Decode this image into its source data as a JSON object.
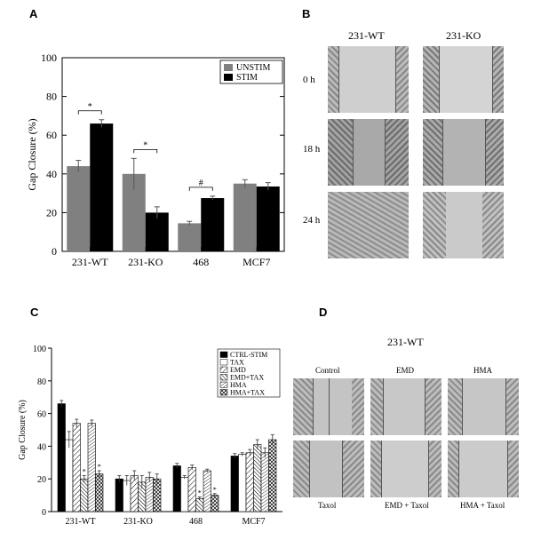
{
  "panels": {
    "A": "A",
    "B": "B",
    "C": "C",
    "D": "D"
  },
  "chart_data": [
    {
      "type": "bar",
      "panel": "A",
      "ylabel": "Gap Closure (%)",
      "xlabel": "",
      "ylim": [
        0,
        100
      ],
      "yticks": [
        "0",
        "20",
        "40",
        "60",
        "80",
        "100"
      ],
      "categories": [
        "231-WT",
        "231-KO",
        "468",
        "MCF7"
      ],
      "series": [
        {
          "name": "UNSTIM",
          "color": "#808080",
          "values": [
            44,
            40,
            14.5,
            35
          ],
          "errors": [
            3,
            8,
            1,
            2
          ]
        },
        {
          "name": "STIM",
          "color": "#000000",
          "values": [
            66,
            20,
            27.5,
            33.5
          ],
          "errors": [
            2,
            3,
            1,
            2
          ]
        }
      ],
      "annotations": [
        "*",
        "*",
        "#"
      ],
      "legend_position": "top-right"
    },
    {
      "type": "bar",
      "panel": "C",
      "ylabel": "Gap Closure (%)",
      "xlabel": "",
      "ylim": [
        0,
        100
      ],
      "yticks": [
        "0",
        "20",
        "40",
        "60",
        "80",
        "100"
      ],
      "categories": [
        "231-WT",
        "231-KO",
        "468",
        "MCF7"
      ],
      "series": [
        {
          "name": "CTRL-STIM",
          "fill": "solid",
          "values": [
            66,
            20,
            28,
            34
          ],
          "errors": [
            2,
            2,
            1.5,
            1.5
          ]
        },
        {
          "name": "TAX",
          "fill": "white",
          "values": [
            44,
            19,
            21,
            35
          ],
          "errors": [
            5,
            3,
            1,
            1
          ]
        },
        {
          "name": "EMD",
          "fill": "diag",
          "values": [
            54,
            22,
            27,
            36
          ],
          "errors": [
            2.5,
            3,
            1.5,
            2
          ]
        },
        {
          "name": "EMD+TAX",
          "fill": "diag2",
          "values": [
            20,
            18,
            8,
            41
          ],
          "errors": [
            2,
            4,
            1,
            3
          ]
        },
        {
          "name": "HMA",
          "fill": "hlines",
          "values": [
            54,
            21,
            25,
            36
          ],
          "errors": [
            2,
            3,
            1,
            3
          ]
        },
        {
          "name": "HMA+TAX",
          "fill": "cross",
          "values": [
            23,
            20,
            10,
            44
          ],
          "errors": [
            2,
            3,
            1,
            3
          ]
        }
      ],
      "annotations": [
        "*",
        "*",
        "*",
        "*"
      ],
      "legend_position": "top-right"
    }
  ],
  "panel_b": {
    "columns": [
      "231-WT",
      "231-KO"
    ],
    "rows": [
      "0 h",
      "18 h",
      "24 h"
    ]
  },
  "panel_d": {
    "title": "231-WT",
    "top_labels": [
      "Control",
      "EMD",
      "HMA"
    ],
    "bottom_labels": [
      "Taxol",
      "EMD + Taxol",
      "HMA + Taxol"
    ]
  }
}
